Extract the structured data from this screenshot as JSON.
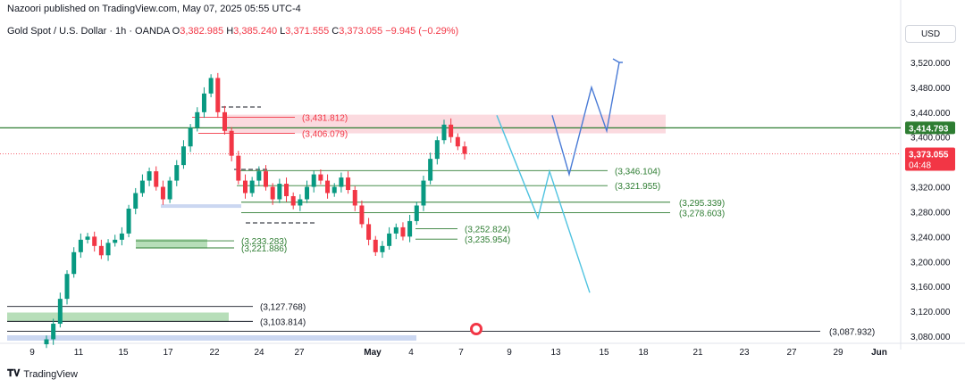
{
  "header": {
    "published": "Nazoori published on TradingView.com, May 07, 2025 05:55 UTC-4"
  },
  "symbol": {
    "name": "Gold Spot / U.S. Dollar · 1h · OANDA",
    "o_label": "O",
    "o": "3,382.985",
    "h_label": "H",
    "h": "3,385.240",
    "l_label": "L",
    "l": "3,371.555",
    "c_label": "C",
    "c": "3,373.055",
    "change": "−9.945 (−0.29%)"
  },
  "currency": "USD",
  "footer": {
    "brand": "TradingView",
    "logo_icon": "tradingview-logo-icon"
  },
  "colors": {
    "green": "#4caf50",
    "red": "#f23645",
    "dark_green": "#2e7d32",
    "blue": "#4a7bd6",
    "cyan": "#4fc3e0",
    "resistance": "#f8bbc5",
    "support_zone": "#a5d6a7",
    "blue_zone": "#c5d3f0"
  },
  "chart_data": {
    "type": "candlestick",
    "y_axis": {
      "ticks": [
        "3,520.000",
        "3,480.000",
        "3,440.000",
        "3,400.000",
        "3,360.000",
        "3,320.000",
        "3,280.000",
        "3,240.000",
        "3,200.000",
        "3,160.000",
        "3,120.000",
        "3,080.000"
      ],
      "tick_values": [
        3520,
        3480,
        3440,
        3400,
        3360,
        3320,
        3280,
        3240,
        3200,
        3160,
        3120,
        3080
      ]
    },
    "x_axis": {
      "ticks": [
        "9",
        "11",
        "15",
        "17",
        "22",
        "24",
        "27",
        "May",
        "4",
        "7",
        "9",
        "13",
        "15",
        "18",
        "21",
        "23",
        "27",
        "29",
        "Jun"
      ]
    },
    "price_labels": [
      {
        "text": "3,414.793",
        "value": 3414.793,
        "color": "#2e7d32"
      },
      {
        "text": "3,373.055",
        "value": 3373.055,
        "color": "#f23645",
        "countdown": "04:48"
      }
    ],
    "levels": [
      {
        "text": "(3,431.812)",
        "value": 3431.812,
        "color": "#f23645"
      },
      {
        "text": "(3,406.079)",
        "value": 3406.079,
        "color": "#f23645"
      },
      {
        "text": "(3,346.104)",
        "value": 3346.104,
        "color": "#2e7d32"
      },
      {
        "text": "(3,321.955)",
        "value": 3321.955,
        "color": "#2e7d32"
      },
      {
        "text": "(3,295.339)",
        "value": 3295.339,
        "color": "#2e7d32"
      },
      {
        "text": "(3,278.603)",
        "value": 3278.603,
        "color": "#2e7d32"
      },
      {
        "text": "(3,252.824)",
        "value": 3252.824,
        "color": "#2e7d32"
      },
      {
        "text": "(3,235.954)",
        "value": 3235.954,
        "color": "#2e7d32"
      },
      {
        "text": "(3,233.283)",
        "value": 3233.283,
        "color": "#2e7d32"
      },
      {
        "text": "(3,221.886)",
        "value": 3221.886,
        "color": "#2e7d32"
      },
      {
        "text": "(3,127.768)",
        "value": 3127.768,
        "color": "#131722"
      },
      {
        "text": "(3,103.814)",
        "value": 3103.814,
        "color": "#131722"
      },
      {
        "text": "(3,087.932)",
        "value": 3087.932,
        "color": "#131722"
      }
    ],
    "price_path_closes": [
      3075,
      3100,
      3140,
      3180,
      3215,
      3235,
      3240,
      3225,
      3210,
      3230,
      3235,
      3245,
      3285,
      3310,
      3330,
      3345,
      3320,
      3300,
      3330,
      3355,
      3385,
      3415,
      3440,
      3470,
      3495,
      3440,
      3410,
      3370,
      3330,
      3310,
      3330,
      3345,
      3320,
      3300,
      3325,
      3305,
      3290,
      3300,
      3320,
      3340,
      3330,
      3310,
      3320,
      3335,
      3315,
      3290,
      3260,
      3235,
      3215,
      3225,
      3245,
      3255,
      3240,
      3265,
      3290,
      3330,
      3365,
      3395,
      3420,
      3400,
      3385,
      3373
    ],
    "projections": [
      {
        "name": "bullish",
        "color": "#4a7bd6",
        "points": [
          [
            3435
          ],
          [
            3340
          ],
          [
            3480
          ],
          [
            3410
          ],
          [
            3520
          ]
        ]
      },
      {
        "name": "bearish",
        "color": "#4fc3e0",
        "points": [
          [
            3435
          ],
          [
            3270
          ],
          [
            3345
          ],
          [
            3150
          ]
        ]
      }
    ]
  }
}
